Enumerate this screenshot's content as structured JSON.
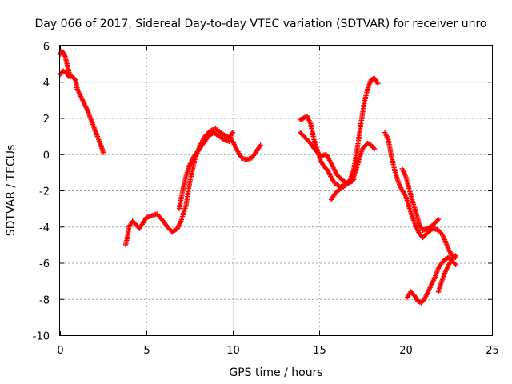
{
  "chart_data": {
    "type": "scatter",
    "title": "Day 066 of 2017, Sidereal Day-to-day VTEC variation (SDTVAR) for receiver unro",
    "xlabel": "GPS time / hours",
    "ylabel": "SDTVAR / TECUs",
    "xlim": [
      0,
      25
    ],
    "ylim": [
      -10,
      6
    ],
    "xticks": [
      0,
      5,
      10,
      15,
      20,
      25
    ],
    "yticks": [
      -10,
      -8,
      -6,
      -4,
      -2,
      0,
      2,
      4,
      6
    ],
    "grid": true,
    "legend": "none",
    "marker": "plus",
    "color": "#ff0000",
    "series": [
      {
        "points": [
          [
            0.0,
            4.4
          ],
          [
            0.1,
            4.5
          ],
          [
            0.2,
            4.6
          ],
          [
            0.35,
            4.5
          ],
          [
            0.5,
            4.3
          ],
          [
            0.7,
            4.3
          ],
          [
            0.9,
            4.1
          ],
          [
            1.0,
            3.6
          ],
          [
            1.2,
            3.2
          ],
          [
            1.4,
            2.8
          ],
          [
            1.6,
            2.4
          ],
          [
            1.8,
            1.9
          ],
          [
            2.0,
            1.4
          ],
          [
            2.2,
            0.9
          ],
          [
            2.4,
            0.4
          ],
          [
            2.5,
            0.1
          ]
        ]
      },
      {
        "points": [
          [
            0.0,
            5.5
          ],
          [
            0.1,
            5.7
          ],
          [
            0.2,
            5.6
          ],
          [
            0.3,
            5.4
          ],
          [
            0.4,
            5.0
          ],
          [
            0.5,
            4.6
          ],
          [
            0.6,
            4.3
          ]
        ]
      },
      {
        "points": [
          [
            3.8,
            -5.0
          ],
          [
            3.9,
            -4.6
          ],
          [
            4.0,
            -4.0
          ],
          [
            4.2,
            -3.7
          ],
          [
            4.4,
            -3.9
          ],
          [
            4.6,
            -4.1
          ],
          [
            4.8,
            -3.8
          ],
          [
            5.0,
            -3.5
          ],
          [
            5.3,
            -3.4
          ],
          [
            5.6,
            -3.3
          ],
          [
            5.9,
            -3.6
          ],
          [
            6.2,
            -4.0
          ],
          [
            6.5,
            -4.3
          ],
          [
            6.8,
            -4.1
          ],
          [
            7.0,
            -3.7
          ],
          [
            7.3,
            -2.8
          ],
          [
            7.5,
            -1.6
          ],
          [
            7.8,
            -0.3
          ],
          [
            8.1,
            0.5
          ],
          [
            8.4,
            1.0
          ],
          [
            8.7,
            1.3
          ],
          [
            9.0,
            1.4
          ],
          [
            9.3,
            1.2
          ],
          [
            9.6,
            1.0
          ],
          [
            9.8,
            0.9
          ],
          [
            10.0,
            0.7
          ],
          [
            10.2,
            0.3
          ],
          [
            10.5,
            -0.2
          ],
          [
            10.8,
            -0.3
          ],
          [
            11.1,
            -0.2
          ],
          [
            11.4,
            0.2
          ],
          [
            11.6,
            0.5
          ]
        ]
      },
      {
        "points": [
          [
            6.9,
            -3.0
          ],
          [
            7.1,
            -2.0
          ],
          [
            7.3,
            -1.2
          ],
          [
            7.5,
            -0.6
          ],
          [
            7.7,
            -0.2
          ],
          [
            8.0,
            0.2
          ],
          [
            8.3,
            0.6
          ],
          [
            8.6,
            1.0
          ],
          [
            8.9,
            1.2
          ],
          [
            9.2,
            1.0
          ],
          [
            9.5,
            0.8
          ],
          [
            9.8,
            0.7
          ],
          [
            9.9,
            1.1
          ],
          [
            10.0,
            1.2
          ]
        ]
      },
      {
        "points": [
          [
            13.9,
            1.9
          ],
          [
            14.1,
            2.0
          ],
          [
            14.3,
            2.1
          ],
          [
            14.5,
            1.7
          ],
          [
            14.7,
            0.8
          ],
          [
            14.9,
            0.2
          ],
          [
            15.1,
            -0.4
          ],
          [
            15.3,
            -0.7
          ],
          [
            15.5,
            -0.9
          ],
          [
            15.7,
            -1.3
          ],
          [
            15.9,
            -1.6
          ],
          [
            16.2,
            -1.8
          ],
          [
            16.5,
            -1.7
          ],
          [
            16.8,
            -1.4
          ],
          [
            17.0,
            -0.8
          ],
          [
            17.2,
            0.3
          ],
          [
            17.4,
            1.6
          ],
          [
            17.6,
            2.8
          ],
          [
            17.8,
            3.6
          ],
          [
            18.0,
            4.1
          ],
          [
            18.2,
            4.2
          ],
          [
            18.4,
            3.9
          ]
        ]
      },
      {
        "points": [
          [
            13.9,
            1.2
          ],
          [
            14.2,
            0.9
          ],
          [
            14.5,
            0.6
          ],
          [
            14.8,
            0.2
          ],
          [
            15.1,
            -0.1
          ],
          [
            15.4,
            0.0
          ],
          [
            15.7,
            -0.5
          ],
          [
            16.0,
            -1.1
          ],
          [
            16.3,
            -1.4
          ],
          [
            16.6,
            -1.6
          ],
          [
            16.9,
            -1.5
          ],
          [
            17.1,
            -1.0
          ],
          [
            17.3,
            -0.3
          ],
          [
            17.5,
            0.3
          ],
          [
            17.8,
            0.6
          ],
          [
            18.0,
            0.5
          ],
          [
            18.2,
            0.3
          ]
        ]
      },
      {
        "points": [
          [
            15.7,
            -2.5
          ],
          [
            15.9,
            -2.2
          ],
          [
            16.1,
            -2.0
          ],
          [
            16.4,
            -1.8
          ],
          [
            16.7,
            -1.6
          ],
          [
            17.0,
            -1.4
          ]
        ]
      },
      {
        "points": [
          [
            18.8,
            1.2
          ],
          [
            19.0,
            0.8
          ],
          [
            19.2,
            -0.2
          ],
          [
            19.4,
            -1.0
          ],
          [
            19.6,
            -1.6
          ],
          [
            19.8,
            -2.0
          ],
          [
            20.0,
            -2.3
          ],
          [
            20.2,
            -2.9
          ],
          [
            20.4,
            -3.5
          ],
          [
            20.6,
            -4.0
          ],
          [
            20.8,
            -4.4
          ],
          [
            21.0,
            -4.6
          ],
          [
            21.3,
            -4.3
          ],
          [
            21.6,
            -4.1
          ],
          [
            21.9,
            -4.2
          ],
          [
            22.1,
            -4.4
          ],
          [
            22.3,
            -4.8
          ],
          [
            22.5,
            -5.3
          ],
          [
            22.7,
            -5.6
          ],
          [
            22.9,
            -5.7
          ]
        ]
      },
      {
        "points": [
          [
            19.8,
            -0.8
          ],
          [
            20.0,
            -1.2
          ],
          [
            20.2,
            -1.9
          ],
          [
            20.4,
            -2.6
          ],
          [
            20.6,
            -3.2
          ],
          [
            20.8,
            -3.9
          ],
          [
            21.0,
            -4.2
          ],
          [
            21.3,
            -4.1
          ],
          [
            21.6,
            -3.9
          ],
          [
            21.9,
            -3.6
          ]
        ]
      },
      {
        "points": [
          [
            20.1,
            -7.9
          ],
          [
            20.3,
            -7.6
          ],
          [
            20.5,
            -7.8
          ],
          [
            20.7,
            -8.1
          ],
          [
            20.9,
            -8.2
          ],
          [
            21.1,
            -8.0
          ],
          [
            21.3,
            -7.6
          ],
          [
            21.5,
            -7.2
          ],
          [
            21.7,
            -6.8
          ],
          [
            21.9,
            -6.3
          ],
          [
            22.1,
            -6.0
          ],
          [
            22.3,
            -5.8
          ],
          [
            22.5,
            -5.7
          ],
          [
            22.7,
            -5.9
          ],
          [
            22.9,
            -6.1
          ]
        ]
      },
      {
        "points": [
          [
            21.9,
            -7.6
          ],
          [
            22.1,
            -7.0
          ],
          [
            22.3,
            -6.5
          ],
          [
            22.5,
            -6.1
          ],
          [
            22.7,
            -5.8
          ],
          [
            22.9,
            -5.6
          ]
        ]
      }
    ]
  }
}
